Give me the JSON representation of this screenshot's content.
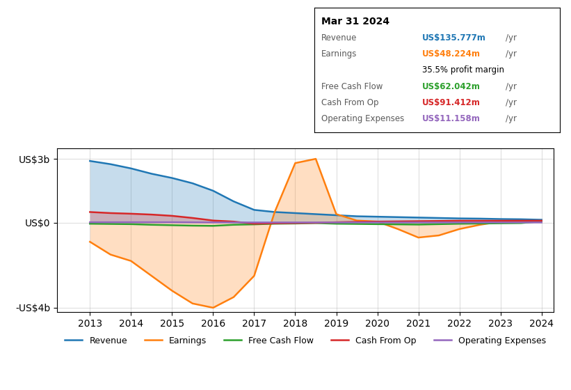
{
  "chart_data": {
    "type": "line",
    "title": "Mar 31 2024",
    "x": [
      2013,
      2013.5,
      2014,
      2014.5,
      2015,
      2015.5,
      2016,
      2016.5,
      2017,
      2017.5,
      2018,
      2018.5,
      2019,
      2019.5,
      2020,
      2020.5,
      2021,
      2021.5,
      2022,
      2022.5,
      2023,
      2023.5,
      2024
    ],
    "series": [
      {
        "name": "Revenue",
        "type": "area",
        "values": [
          2.9,
          2.75,
          2.55,
          2.3,
          2.1,
          1.85,
          1.5,
          1.0,
          0.6,
          0.5,
          0.45,
          0.4,
          0.35,
          0.3,
          0.28,
          0.26,
          0.24,
          0.22,
          0.2,
          0.19,
          0.17,
          0.16,
          0.136
        ]
      },
      {
        "name": "Earnings",
        "type": "area",
        "values": [
          -0.9,
          -1.5,
          -1.8,
          -2.5,
          -3.2,
          -3.8,
          -4.0,
          -3.5,
          -2.5,
          0.5,
          2.8,
          3.0,
          0.4,
          0.1,
          0.05,
          -0.3,
          -0.7,
          -0.6,
          -0.3,
          -0.1,
          0.05,
          0.06,
          0.048
        ]
      },
      {
        "name": "Free Cash Flow",
        "type": "line",
        "values": [
          -0.05,
          -0.06,
          -0.07,
          -0.1,
          -0.12,
          -0.14,
          -0.15,
          -0.1,
          -0.08,
          -0.05,
          -0.04,
          -0.02,
          -0.05,
          -0.06,
          -0.07,
          -0.08,
          -0.09,
          -0.07,
          -0.05,
          -0.04,
          -0.03,
          -0.02,
          0.062
        ]
      },
      {
        "name": "Cash From Op",
        "type": "area",
        "values": [
          0.5,
          0.45,
          0.42,
          0.38,
          0.32,
          0.22,
          0.1,
          0.05,
          -0.05,
          -0.03,
          -0.02,
          -0.01,
          0.02,
          0.04,
          0.05,
          0.06,
          0.07,
          0.08,
          0.09,
          0.09,
          0.09,
          0.09,
          0.091
        ]
      },
      {
        "name": "Operating Expenses",
        "type": "line",
        "values": [
          0.02,
          0.02,
          0.02,
          0.02,
          0.02,
          0.015,
          0.01,
          0.01,
          0.01,
          0.01,
          0.01,
          0.01,
          0.01,
          0.01,
          0.01,
          0.01,
          0.01,
          0.01,
          0.01,
          0.01,
          0.011,
          0.011,
          0.011
        ]
      }
    ],
    "xlim": [
      2012.2,
      2024.3
    ],
    "xticks": [
      2013,
      2014,
      2015,
      2016,
      2017,
      2018,
      2019,
      2020,
      2021,
      2022,
      2023,
      2024
    ],
    "ylim": [
      -4.2,
      3.5
    ],
    "yticks": [
      {
        "value": 3,
        "label": "US$3b"
      },
      {
        "value": 0,
        "label": "US$0"
      },
      {
        "value": -4,
        "label": "-US$4b"
      }
    ],
    "grid": true,
    "legend": "upper center",
    "annotations": [
      [
        "Revenue",
        "US$135.777m",
        "/yr"
      ],
      [
        "Earnings",
        "US$48.224m",
        "/yr",
        "35.5% profit margin"
      ],
      [
        "Free Cash Flow",
        "US$62.042m",
        "/yr"
      ],
      [
        "Cash From Op",
        "US$91.412m",
        "/yr"
      ],
      [
        "Operating Expenses",
        "US$11.158m",
        "/yr"
      ]
    ]
  }
}
